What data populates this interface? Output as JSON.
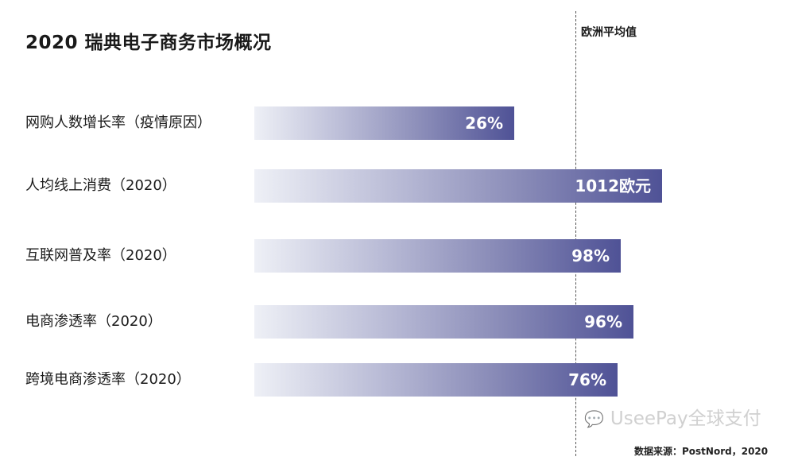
{
  "chart_data": {
    "type": "bar",
    "orientation": "horizontal",
    "title": "2020 瑞典电子商务市场概况",
    "reference_line": {
      "label": "欧洲平均值",
      "style": "dashed"
    },
    "categories": [
      "网购人数增长率（疫情原因）",
      "人均线上消费（2020）",
      "互联网普及率（2020）",
      "电商渗透率（2020）",
      "跨境电商渗透率（2020）"
    ],
    "value_labels": [
      "26%",
      "1012欧元",
      "98%",
      "96%",
      "76%"
    ],
    "index_vs_eu_average": [
      0.81,
      1.27,
      1.14,
      1.18,
      1.13
    ],
    "bar_colors": [
      "#eef0f6",
      "#4f5296"
    ],
    "grid": false,
    "source": "数据来源：PostNord，2020"
  },
  "watermark": "UseePay全球支付"
}
